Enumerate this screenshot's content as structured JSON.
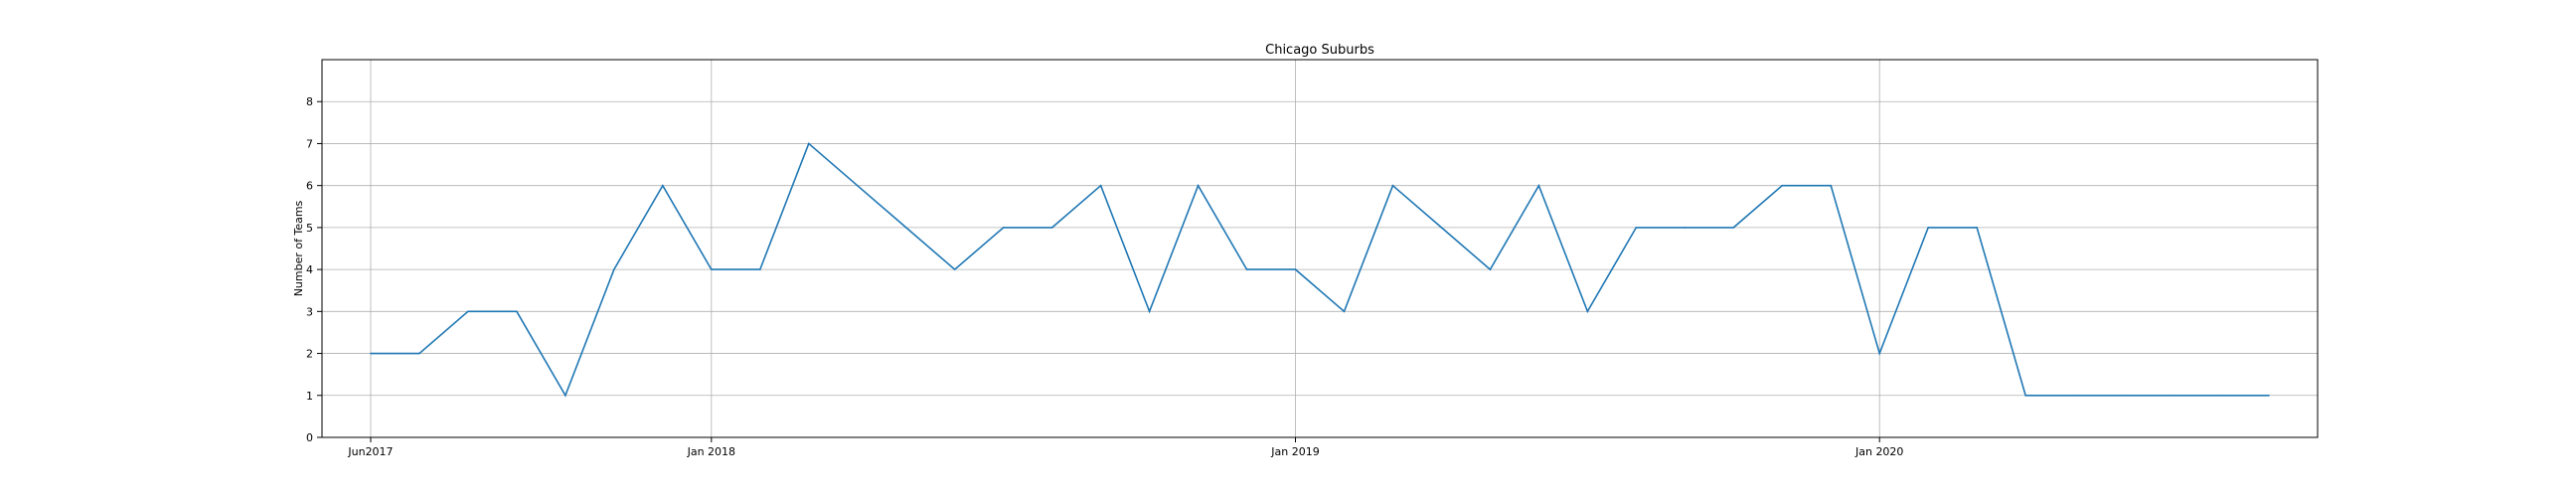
{
  "chart_data": {
    "type": "line",
    "title": "Chicago Suburbs",
    "xlabel": "",
    "ylabel": "Number of Teams",
    "ylim": [
      0,
      9
    ],
    "xlim": [
      "2017-05",
      "2020-10"
    ],
    "grid": true,
    "line_color": "#1f77b4",
    "y_ticks": [
      0,
      1,
      2,
      3,
      4,
      5,
      6,
      7,
      8
    ],
    "x_ticks": [
      {
        "date": "2017-06",
        "label": "Jun2017"
      },
      {
        "date": "2018-01",
        "label": "Jan 2018"
      },
      {
        "date": "2019-01",
        "label": "Jan 2019"
      },
      {
        "date": "2020-01",
        "label": "Jan 2020"
      }
    ],
    "x": [
      "2017-06",
      "2017-07",
      "2017-08",
      "2017-09",
      "2017-10",
      "2017-11",
      "2017-12",
      "2018-01",
      "2018-02",
      "2018-03",
      "2018-04",
      "2018-05",
      "2018-06",
      "2018-07",
      "2018-08",
      "2018-09",
      "2018-10",
      "2018-11",
      "2018-12",
      "2019-01",
      "2019-02",
      "2019-03",
      "2019-04",
      "2019-05",
      "2019-06",
      "2019-07",
      "2019-08",
      "2019-09",
      "2019-10",
      "2019-11",
      "2019-12",
      "2020-01",
      "2020-02",
      "2020-03",
      "2020-04",
      "2020-05",
      "2020-06",
      "2020-07",
      "2020-08",
      "2020-09"
    ],
    "values": [
      2,
      2,
      3,
      3,
      1,
      4,
      6,
      4,
      4,
      7,
      6,
      5,
      4,
      5,
      5,
      6,
      3,
      6,
      4,
      4,
      3,
      6,
      5,
      4,
      6,
      3,
      5,
      5,
      5,
      6,
      6,
      2,
      5,
      5,
      1,
      1,
      1,
      1,
      1,
      1
    ]
  }
}
